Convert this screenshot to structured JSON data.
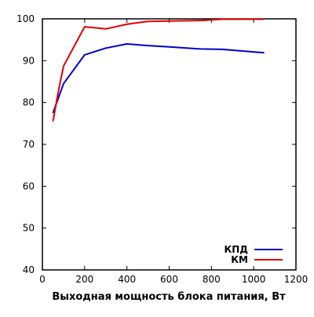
{
  "chart_data": {
    "type": "line",
    "xlabel": "Выходная мощность блока питания, Вт",
    "ylabel": "",
    "xlim": [
      0,
      1200
    ],
    "ylim": [
      40,
      100
    ],
    "x_ticks": [
      0,
      200,
      400,
      600,
      800,
      1000,
      1200
    ],
    "y_ticks": [
      40,
      50,
      60,
      70,
      80,
      90,
      100
    ],
    "grid": false,
    "legend_position": "bottom-right",
    "series": [
      {
        "name": "КПД",
        "color": "#0000cc",
        "x": [
          50,
          100,
          200,
          300,
          400,
          500,
          600,
          750,
          850,
          1050
        ],
        "y": [
          77.5,
          84.5,
          91.4,
          93.0,
          94.0,
          93.6,
          93.3,
          92.8,
          92.7,
          91.9
        ]
      },
      {
        "name": "КМ",
        "color": "#dd0000",
        "x": [
          50,
          75,
          100,
          200,
          300,
          400,
          500,
          750,
          850,
          1050
        ],
        "y": [
          75.5,
          82.5,
          88.7,
          98.1,
          97.6,
          98.7,
          99.4,
          99.6,
          99.9,
          99.9
        ]
      }
    ]
  }
}
